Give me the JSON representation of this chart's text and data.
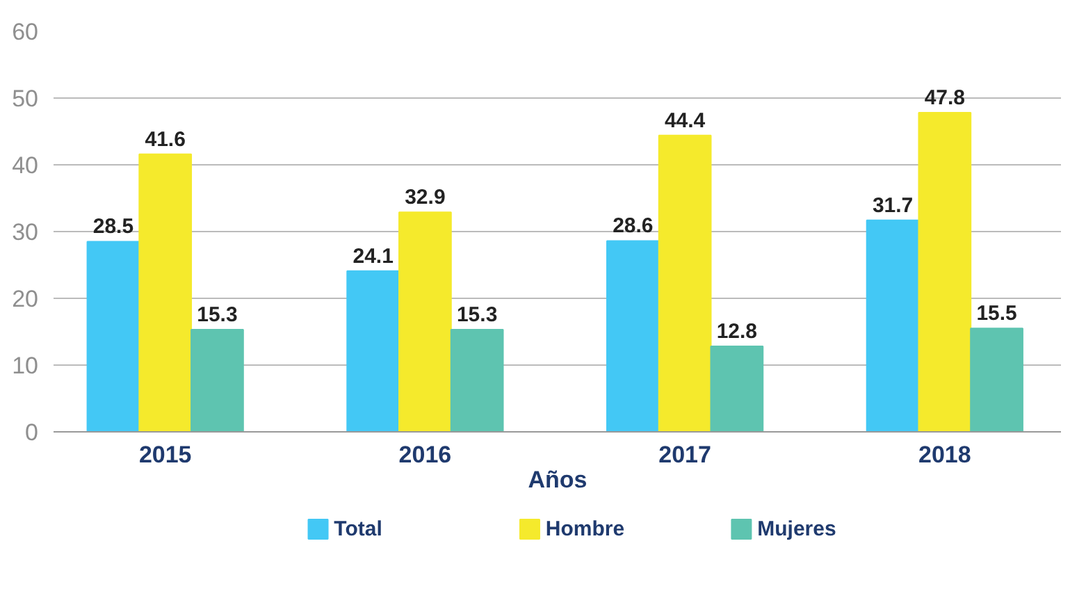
{
  "chart_data": {
    "type": "bar",
    "xlabel": "Años",
    "categories": [
      "2015",
      "2016",
      "2017",
      "2018"
    ],
    "series": [
      {
        "name": "Total",
        "color": "#43c8f5",
        "values": [
          28.5,
          24.1,
          28.6,
          31.7
        ]
      },
      {
        "name": "Hombre",
        "color": "#f5ea2c",
        "values": [
          41.6,
          32.9,
          44.4,
          47.8
        ]
      },
      {
        "name": "Mujeres",
        "color": "#5ec4b0",
        "values": [
          15.3,
          15.3,
          12.8,
          15.5
        ]
      }
    ],
    "ylim": [
      0,
      60
    ],
    "yticks": [
      0,
      10,
      20,
      30,
      40,
      50,
      60
    ],
    "grid": "y",
    "legend": "bottom",
    "data_labels": true
  }
}
